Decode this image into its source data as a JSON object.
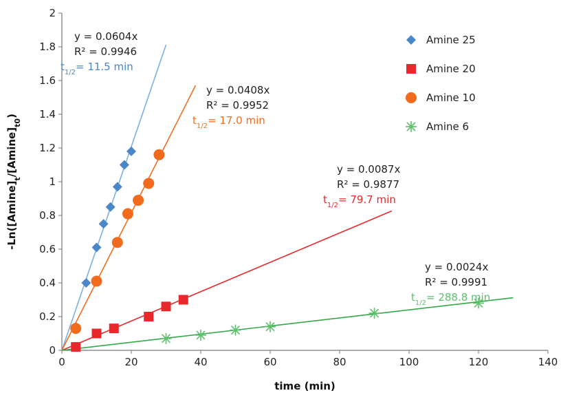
{
  "chart_data": {
    "type": "scatter",
    "xlabel": "time (min)",
    "ylabel": "-Ln([Amine]t/[Amine]t0)",
    "xlim": [
      0,
      140
    ],
    "ylim": [
      0,
      2
    ],
    "xticks": [
      0,
      20,
      40,
      60,
      80,
      100,
      120,
      140
    ],
    "yticks": [
      0,
      0.2,
      0.4,
      0.6,
      0.8,
      1,
      1.2,
      1.4,
      1.6,
      1.8,
      2
    ],
    "xtick_labels": [
      "0",
      "20",
      "40",
      "60",
      "80",
      "100",
      "120",
      "140"
    ],
    "ytick_labels": [
      "0",
      "0.2",
      "0.4",
      "0.6",
      "0.8",
      "1",
      "1.2",
      "1.4",
      "1.6",
      "1.8",
      "2"
    ],
    "grid": false,
    "legend_position": "top-right",
    "series": [
      {
        "name": "Amine 25",
        "marker": "diamond",
        "color": "#4a86c8",
        "line_color": "#7ab0e0",
        "x": [
          7,
          10,
          12,
          14,
          16,
          18,
          20
        ],
        "y": [
          0.4,
          0.61,
          0.75,
          0.85,
          0.97,
          1.1,
          1.18
        ],
        "fit": {
          "slope": 0.0604,
          "x_end": 30,
          "equation": "y = 0.0604x",
          "r2": "R² = 0.9946",
          "half_life": "t1/2= 11.5 min"
        }
      },
      {
        "name": "Amine 20",
        "marker": "square",
        "color": "#e8282a",
        "line_color": "#e8282a",
        "x": [
          4,
          10,
          15,
          25,
          30,
          35
        ],
        "y": [
          0.02,
          0.1,
          0.13,
          0.2,
          0.26,
          0.3
        ],
        "fit": {
          "slope": 0.0087,
          "x_end": 95,
          "equation": "y = 0.0087x",
          "r2": "R² = 0.9877",
          "half_life": "t1/2= 79.7 min"
        }
      },
      {
        "name": "Amine 10",
        "marker": "circle",
        "color": "#f26b1d",
        "line_color": "#f26b1d",
        "x": [
          4,
          10,
          16,
          19,
          22,
          25,
          28
        ],
        "y": [
          0.13,
          0.41,
          0.64,
          0.81,
          0.89,
          0.99,
          1.16
        ],
        "fit": {
          "slope": 0.0408,
          "x_end": 38.5,
          "equation": "y = 0.0408x",
          "r2": "R² = 0.9952",
          "half_life": "t1/2= 17.0 min"
        }
      },
      {
        "name": "Amine 6",
        "marker": "star",
        "color": "#5cbf6a",
        "line_color": "#34a848",
        "x": [
          30,
          40,
          50,
          60,
          90,
          120
        ],
        "y": [
          0.07,
          0.09,
          0.12,
          0.14,
          0.22,
          0.28
        ],
        "fit": {
          "slope": 0.0024,
          "x_end": 130,
          "equation": "y = 0.0024x",
          "r2": "R² = 0.9991",
          "half_life": "t1/2= 288.8 min"
        }
      }
    ]
  }
}
